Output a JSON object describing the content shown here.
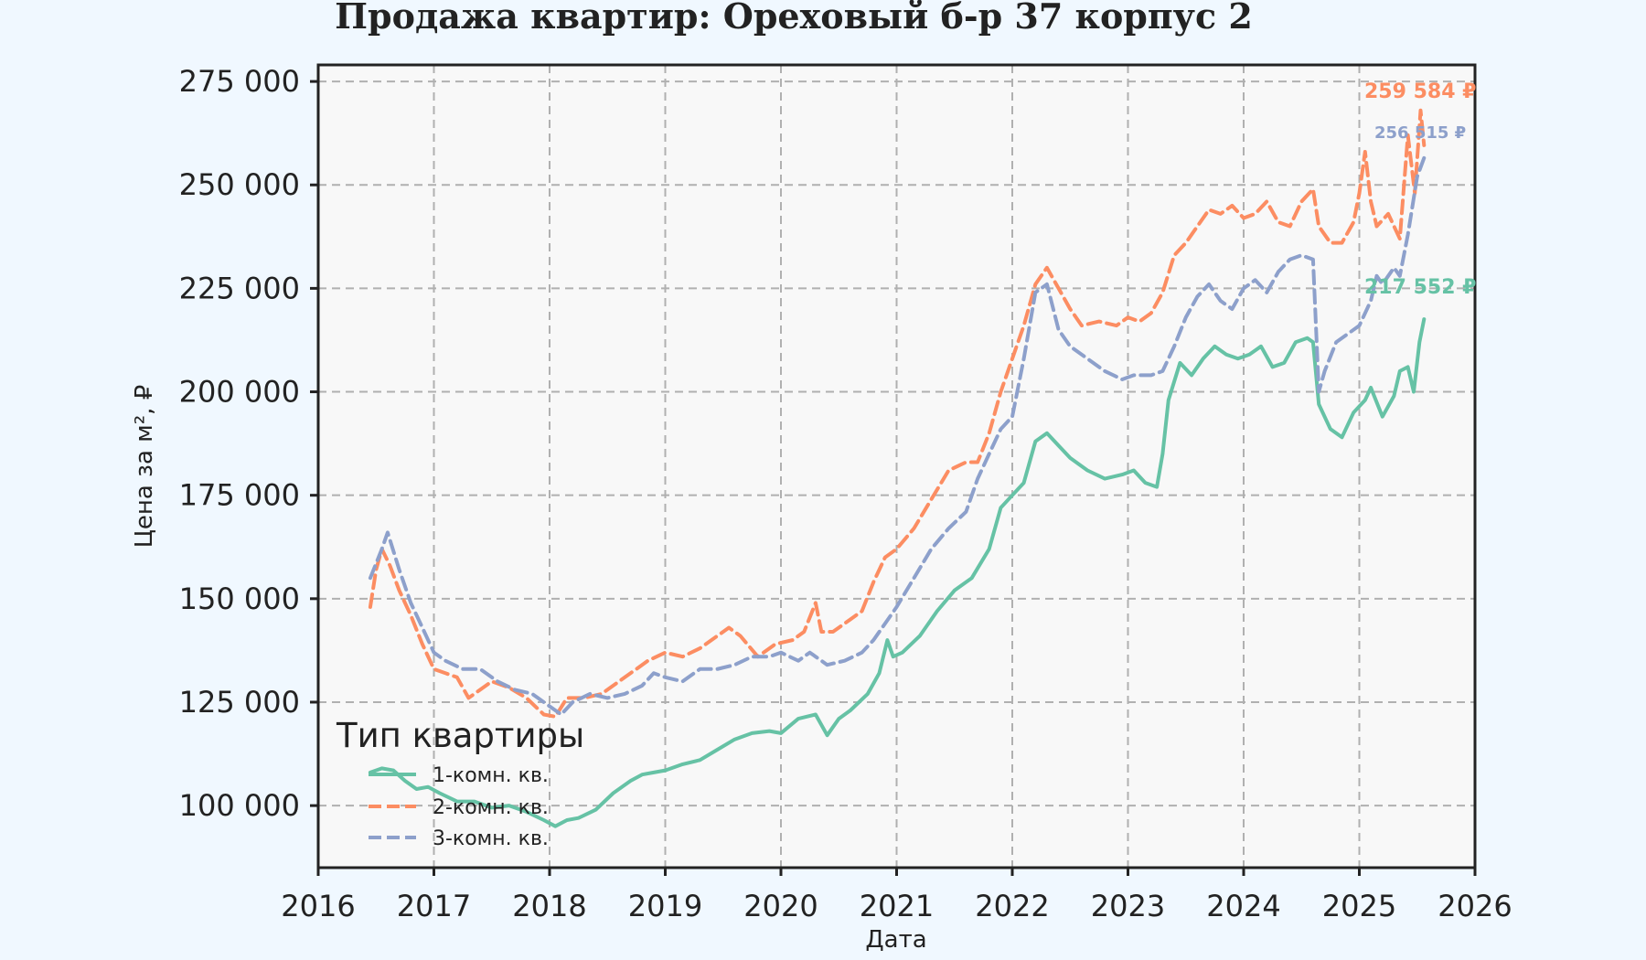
{
  "chart_data": {
    "type": "line",
    "title": "Продажа квартир: Ореховый б-р 37 корпус 2",
    "xlabel": "Дата",
    "ylabel": "Цена за м², ₽",
    "xlim": [
      2016,
      2026
    ],
    "ylim": [
      85000,
      279000
    ],
    "x_ticks": [
      "2016",
      "2017",
      "2018",
      "2019",
      "2020",
      "2021",
      "2022",
      "2023",
      "2024",
      "2025",
      "2026"
    ],
    "y_ticks": [
      "100 000",
      "125 000",
      "150 000",
      "175 000",
      "200 000",
      "225 000",
      "250 000",
      "275 000"
    ],
    "y_tick_values": [
      100000,
      125000,
      150000,
      175000,
      200000,
      225000,
      250000,
      275000
    ],
    "grid": true,
    "legend": {
      "title": "Тип квартиры",
      "placement": "bottom-left"
    },
    "series": [
      {
        "name": "1-комн. кв.",
        "color": "#66c2a5",
        "style": "solid",
        "end_label": "217 552 ₽",
        "end_value": 217552,
        "x": [
          2016.45,
          2016.55,
          2016.65,
          2016.75,
          2016.85,
          2016.95,
          2017.05,
          2017.2,
          2017.35,
          2017.5,
          2017.65,
          2017.8,
          2017.95,
          2018.05,
          2018.15,
          2018.25,
          2018.4,
          2018.55,
          2018.7,
          2018.8,
          2018.9,
          2019.0,
          2019.15,
          2019.3,
          2019.45,
          2019.6,
          2019.75,
          2019.9,
          2020.0,
          2020.15,
          2020.3,
          2020.4,
          2020.5,
          2020.6,
          2020.75,
          2020.85,
          2020.92,
          2020.97,
          2021.05,
          2021.2,
          2021.35,
          2021.5,
          2021.65,
          2021.8,
          2021.9,
          2022.0,
          2022.1,
          2022.2,
          2022.3,
          2022.4,
          2022.5,
          2022.65,
          2022.8,
          2022.95,
          2023.05,
          2023.15,
          2023.25,
          2023.3,
          2023.35,
          2023.45,
          2023.55,
          2023.65,
          2023.75,
          2023.85,
          2023.95,
          2024.05,
          2024.15,
          2024.25,
          2024.35,
          2024.45,
          2024.55,
          2024.6,
          2024.65,
          2024.75,
          2024.85,
          2024.95,
          2025.05,
          2025.1,
          2025.2,
          2025.3,
          2025.35,
          2025.42,
          2025.47,
          2025.52,
          2025.56
        ],
        "y": [
          108000,
          109000,
          108500,
          106000,
          104000,
          104500,
          103000,
          101000,
          101000,
          99500,
          100000,
          98500,
          96500,
          95000,
          96500,
          97000,
          99000,
          103000,
          106000,
          107500,
          108000,
          108500,
          110000,
          111000,
          113500,
          116000,
          117500,
          118000,
          117500,
          121000,
          122000,
          117000,
          121000,
          123000,
          127000,
          132000,
          140000,
          136000,
          137000,
          141000,
          147000,
          152000,
          155000,
          162000,
          172000,
          175000,
          178000,
          188000,
          190000,
          187000,
          184000,
          181000,
          179000,
          180000,
          181000,
          178000,
          177000,
          185000,
          198000,
          207000,
          204000,
          208000,
          211000,
          209000,
          208000,
          209000,
          211000,
          206000,
          207000,
          212000,
          213000,
          212000,
          197000,
          191000,
          189000,
          195000,
          198000,
          201000,
          194000,
          199000,
          205000,
          206000,
          200000,
          212000,
          217552
        ]
      },
      {
        "name": "2-комн. кв.",
        "color": "#fc8d62",
        "style": "dashed",
        "end_label": "259 584 ₽",
        "end_value": 259584,
        "x": [
          2016.45,
          2016.5,
          2016.55,
          2016.62,
          2016.7,
          2016.8,
          2016.9,
          2017.0,
          2017.1,
          2017.2,
          2017.3,
          2017.4,
          2017.5,
          2017.65,
          2017.8,
          2017.95,
          2018.05,
          2018.15,
          2018.3,
          2018.45,
          2018.6,
          2018.75,
          2018.85,
          2019.0,
          2019.15,
          2019.3,
          2019.45,
          2019.55,
          2019.65,
          2019.8,
          2019.95,
          2020.1,
          2020.2,
          2020.3,
          2020.35,
          2020.45,
          2020.6,
          2020.7,
          2020.8,
          2020.9,
          2021.0,
          2021.15,
          2021.3,
          2021.45,
          2021.6,
          2021.7,
          2021.8,
          2021.9,
          2022.0,
          2022.1,
          2022.2,
          2022.3,
          2022.4,
          2022.5,
          2022.6,
          2022.75,
          2022.9,
          2023.0,
          2023.1,
          2023.2,
          2023.3,
          2023.4,
          2023.5,
          2023.6,
          2023.7,
          2023.8,
          2023.9,
          2024.0,
          2024.1,
          2024.2,
          2024.3,
          2024.4,
          2024.5,
          2024.6,
          2024.65,
          2024.75,
          2024.85,
          2024.95,
          2025.0,
          2025.05,
          2025.1,
          2025.15,
          2025.25,
          2025.35,
          2025.42,
          2025.48,
          2025.53,
          2025.56
        ],
        "y": [
          148000,
          157000,
          162000,
          158000,
          152000,
          146000,
          139000,
          133000,
          132000,
          131000,
          126000,
          128000,
          130000,
          128500,
          126000,
          122000,
          121500,
          126000,
          126000,
          127000,
          130000,
          133000,
          135000,
          137000,
          136000,
          138000,
          141000,
          143000,
          141000,
          136000,
          139000,
          140000,
          142000,
          149000,
          142000,
          142000,
          145000,
          147000,
          154000,
          160000,
          162000,
          167000,
          174000,
          181000,
          183000,
          183000,
          190000,
          200000,
          208000,
          216000,
          226000,
          230000,
          225000,
          220000,
          216000,
          217000,
          216000,
          218000,
          217000,
          219000,
          224000,
          233000,
          236000,
          240000,
          244000,
          243000,
          245000,
          242000,
          243000,
          246000,
          241000,
          240000,
          246000,
          249000,
          240000,
          236000,
          236000,
          241000,
          248000,
          258000,
          246000,
          240000,
          243000,
          237000,
          262000,
          248000,
          268000,
          259584
        ]
      },
      {
        "name": "3-комн. кв.",
        "color": "#8da0cb",
        "style": "dashed",
        "end_label": "256 515 ₽",
        "end_value": 256515,
        "x": [
          2016.45,
          2016.55,
          2016.6,
          2016.7,
          2016.8,
          2016.9,
          2017.0,
          2017.1,
          2017.25,
          2017.4,
          2017.55,
          2017.7,
          2017.85,
          2018.0,
          2018.1,
          2018.2,
          2018.35,
          2018.5,
          2018.65,
          2018.8,
          2018.9,
          2019.0,
          2019.15,
          2019.3,
          2019.45,
          2019.6,
          2019.75,
          2019.9,
          2020.0,
          2020.15,
          2020.25,
          2020.4,
          2020.55,
          2020.7,
          2020.8,
          2020.9,
          2021.0,
          2021.15,
          2021.3,
          2021.45,
          2021.6,
          2021.7,
          2021.8,
          2021.9,
          2022.0,
          2022.1,
          2022.2,
          2022.3,
          2022.4,
          2022.5,
          2022.65,
          2022.8,
          2022.95,
          2023.05,
          2023.2,
          2023.3,
          2023.4,
          2023.5,
          2023.6,
          2023.7,
          2023.8,
          2023.9,
          2024.0,
          2024.1,
          2024.2,
          2024.3,
          2024.4,
          2024.5,
          2024.6,
          2024.65,
          2024.7,
          2024.8,
          2024.9,
          2025.0,
          2025.1,
          2025.15,
          2025.2,
          2025.3,
          2025.35,
          2025.42,
          2025.5,
          2025.56
        ],
        "y": [
          155000,
          162000,
          166000,
          157000,
          149000,
          143000,
          137000,
          135000,
          133000,
          133000,
          130000,
          128000,
          127000,
          124000,
          122000,
          125000,
          127000,
          126000,
          127000,
          129000,
          132000,
          131000,
          130000,
          133000,
          133000,
          134000,
          136000,
          136000,
          137000,
          135000,
          137000,
          134000,
          135000,
          137000,
          140000,
          144000,
          148000,
          155000,
          162000,
          167000,
          171000,
          179000,
          185000,
          191000,
          194000,
          208000,
          224000,
          226000,
          215000,
          211000,
          208000,
          205000,
          203000,
          204000,
          204000,
          205000,
          211000,
          218000,
          223000,
          226000,
          222000,
          220000,
          225000,
          227000,
          224000,
          229000,
          232000,
          233000,
          232000,
          200000,
          205000,
          212000,
          214000,
          216000,
          222000,
          228000,
          226000,
          230000,
          228000,
          238000,
          252000,
          256515
        ]
      }
    ]
  }
}
